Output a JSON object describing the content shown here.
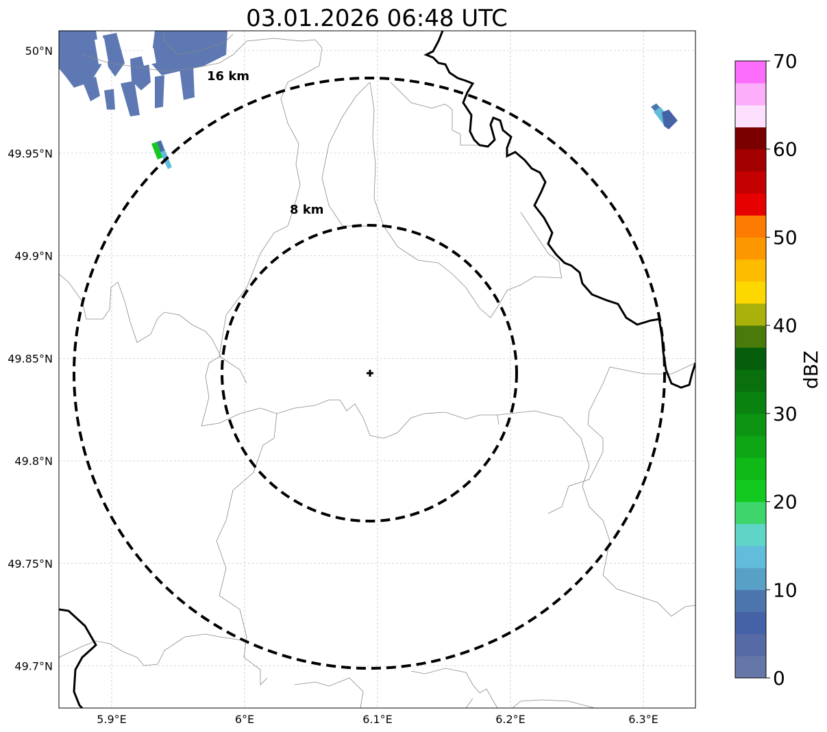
{
  "title": "03.01.2026 06:48 UTC",
  "map": {
    "lon_range": [
      5.86,
      6.34
    ],
    "lat_range": [
      49.68,
      50.01
    ],
    "gridlines": true,
    "x_ticks": [
      {
        "value": 5.9,
        "label": "5.9°E"
      },
      {
        "value": 6.0,
        "label": "6°E"
      },
      {
        "value": 6.1,
        "label": "6.1°E"
      },
      {
        "value": 6.2,
        "label": "6.2°E"
      },
      {
        "value": 6.3,
        "label": "6.3°E"
      }
    ],
    "y_ticks": [
      {
        "value": 50.0,
        "label": "50°N"
      },
      {
        "value": 49.95,
        "label": "49.95°N"
      },
      {
        "value": 49.9,
        "label": "49.9°N"
      },
      {
        "value": 49.85,
        "label": "49.85°N"
      },
      {
        "value": 49.8,
        "label": "49.8°N"
      },
      {
        "value": 49.75,
        "label": "49.75°N"
      },
      {
        "value": 49.7,
        "label": "49.7°N"
      }
    ],
    "radar_site": {
      "lon": 6.0955,
      "lat": 49.843
    },
    "rings": [
      {
        "label": "8 km",
        "radius_km": 8
      },
      {
        "label": "16 km",
        "radius_km": 16
      }
    ]
  },
  "colorbar": {
    "label": "dBZ",
    "min": 0,
    "max": 70,
    "step": 2.5,
    "tick_labels": [
      "0",
      "10",
      "20",
      "30",
      "40",
      "50",
      "60",
      "70"
    ],
    "colors": [
      "#6577a8",
      "#566aa6",
      "#4662a6",
      "#4c75ad",
      "#59a0c6",
      "#62bcdc",
      "#5fd5c7",
      "#3ed66b",
      "#12c91f",
      "#10b818",
      "#0ea615",
      "#0c9412",
      "#0a8210",
      "#0a700e",
      "#055e0b",
      "#4a7a0a",
      "#a9b10a",
      "#fdd800",
      "#fdbc00",
      "#fd9700",
      "#fd7b00",
      "#e60000",
      "#c40000",
      "#a30000",
      "#7a0000",
      "#fde0fd",
      "#fcaefb",
      "#fc6dfb",
      "#f235ee"
    ]
  }
}
